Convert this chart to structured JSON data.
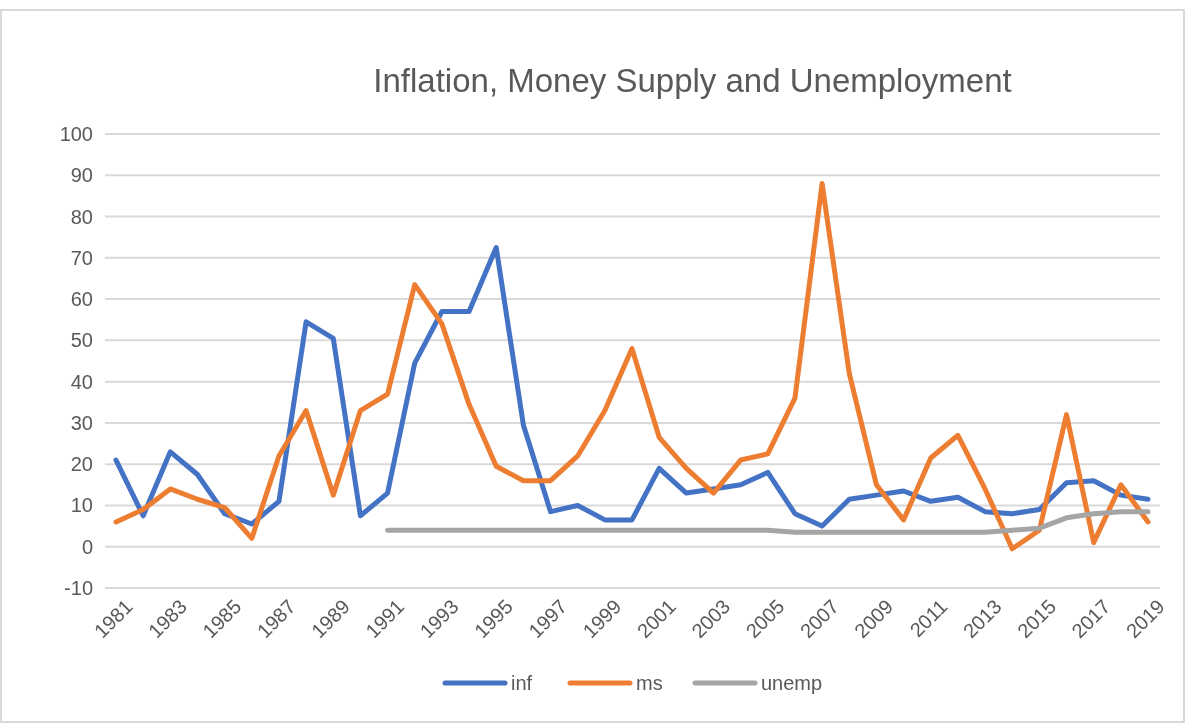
{
  "chart_data": {
    "type": "line",
    "title": "Inflation, Money Supply and Unemployment",
    "categories": [
      "1981",
      null,
      "1983",
      null,
      "1985",
      null,
      "1987",
      null,
      "1989",
      null,
      "1991",
      null,
      "1993",
      null,
      "1995",
      null,
      "1997",
      null,
      "1999",
      null,
      "2001",
      null,
      "2003",
      null,
      "2005",
      null,
      "2007",
      null,
      "2009",
      null,
      "2011",
      null,
      "2013",
      null,
      "2015",
      null,
      "2017",
      null,
      "2019"
    ],
    "series": [
      {
        "name": "inf",
        "color": "#4472c4",
        "values": [
          21,
          7.5,
          23,
          17.5,
          8,
          5.5,
          11,
          54.5,
          50.5,
          7.5,
          13,
          44.5,
          57,
          57,
          72.5,
          29.5,
          8.5,
          10,
          6.5,
          6.5,
          19,
          13,
          14,
          15,
          18,
          8,
          5,
          11.5,
          12.5,
          13.5,
          11,
          12,
          8.5,
          8,
          9,
          15.5,
          16,
          12.5,
          11.5
        ]
      },
      {
        "name": "ms",
        "color": "#ed7d31",
        "values": [
          6,
          9,
          14,
          11.5,
          9.5,
          2,
          22,
          33,
          12.5,
          33,
          37,
          63.5,
          54,
          34.5,
          19.5,
          16,
          16,
          22,
          33,
          48,
          26.5,
          19,
          13,
          21,
          22.5,
          36,
          88,
          42,
          15,
          6.5,
          21.5,
          27,
          14,
          -0.5,
          4,
          32,
          1,
          15,
          6
        ]
      },
      {
        "name": "unemp",
        "color": "#a5a5a5",
        "values": [
          null,
          null,
          null,
          null,
          null,
          null,
          null,
          null,
          null,
          null,
          4,
          4,
          4,
          4,
          4,
          4,
          4,
          4,
          4,
          4,
          4,
          4,
          4,
          4,
          4,
          3.5,
          3.5,
          3.5,
          3.5,
          3.5,
          3.5,
          3.5,
          3.5,
          4,
          4.5,
          7,
          8,
          8.5,
          8.5
        ]
      }
    ],
    "ylim": [
      -10,
      100
    ],
    "yticks": [
      -10,
      0,
      10,
      20,
      30,
      40,
      50,
      60,
      70,
      80,
      90,
      100
    ],
    "grid": "y",
    "legend": "bottom",
    "marker": "none",
    "line_style": "solid"
  }
}
